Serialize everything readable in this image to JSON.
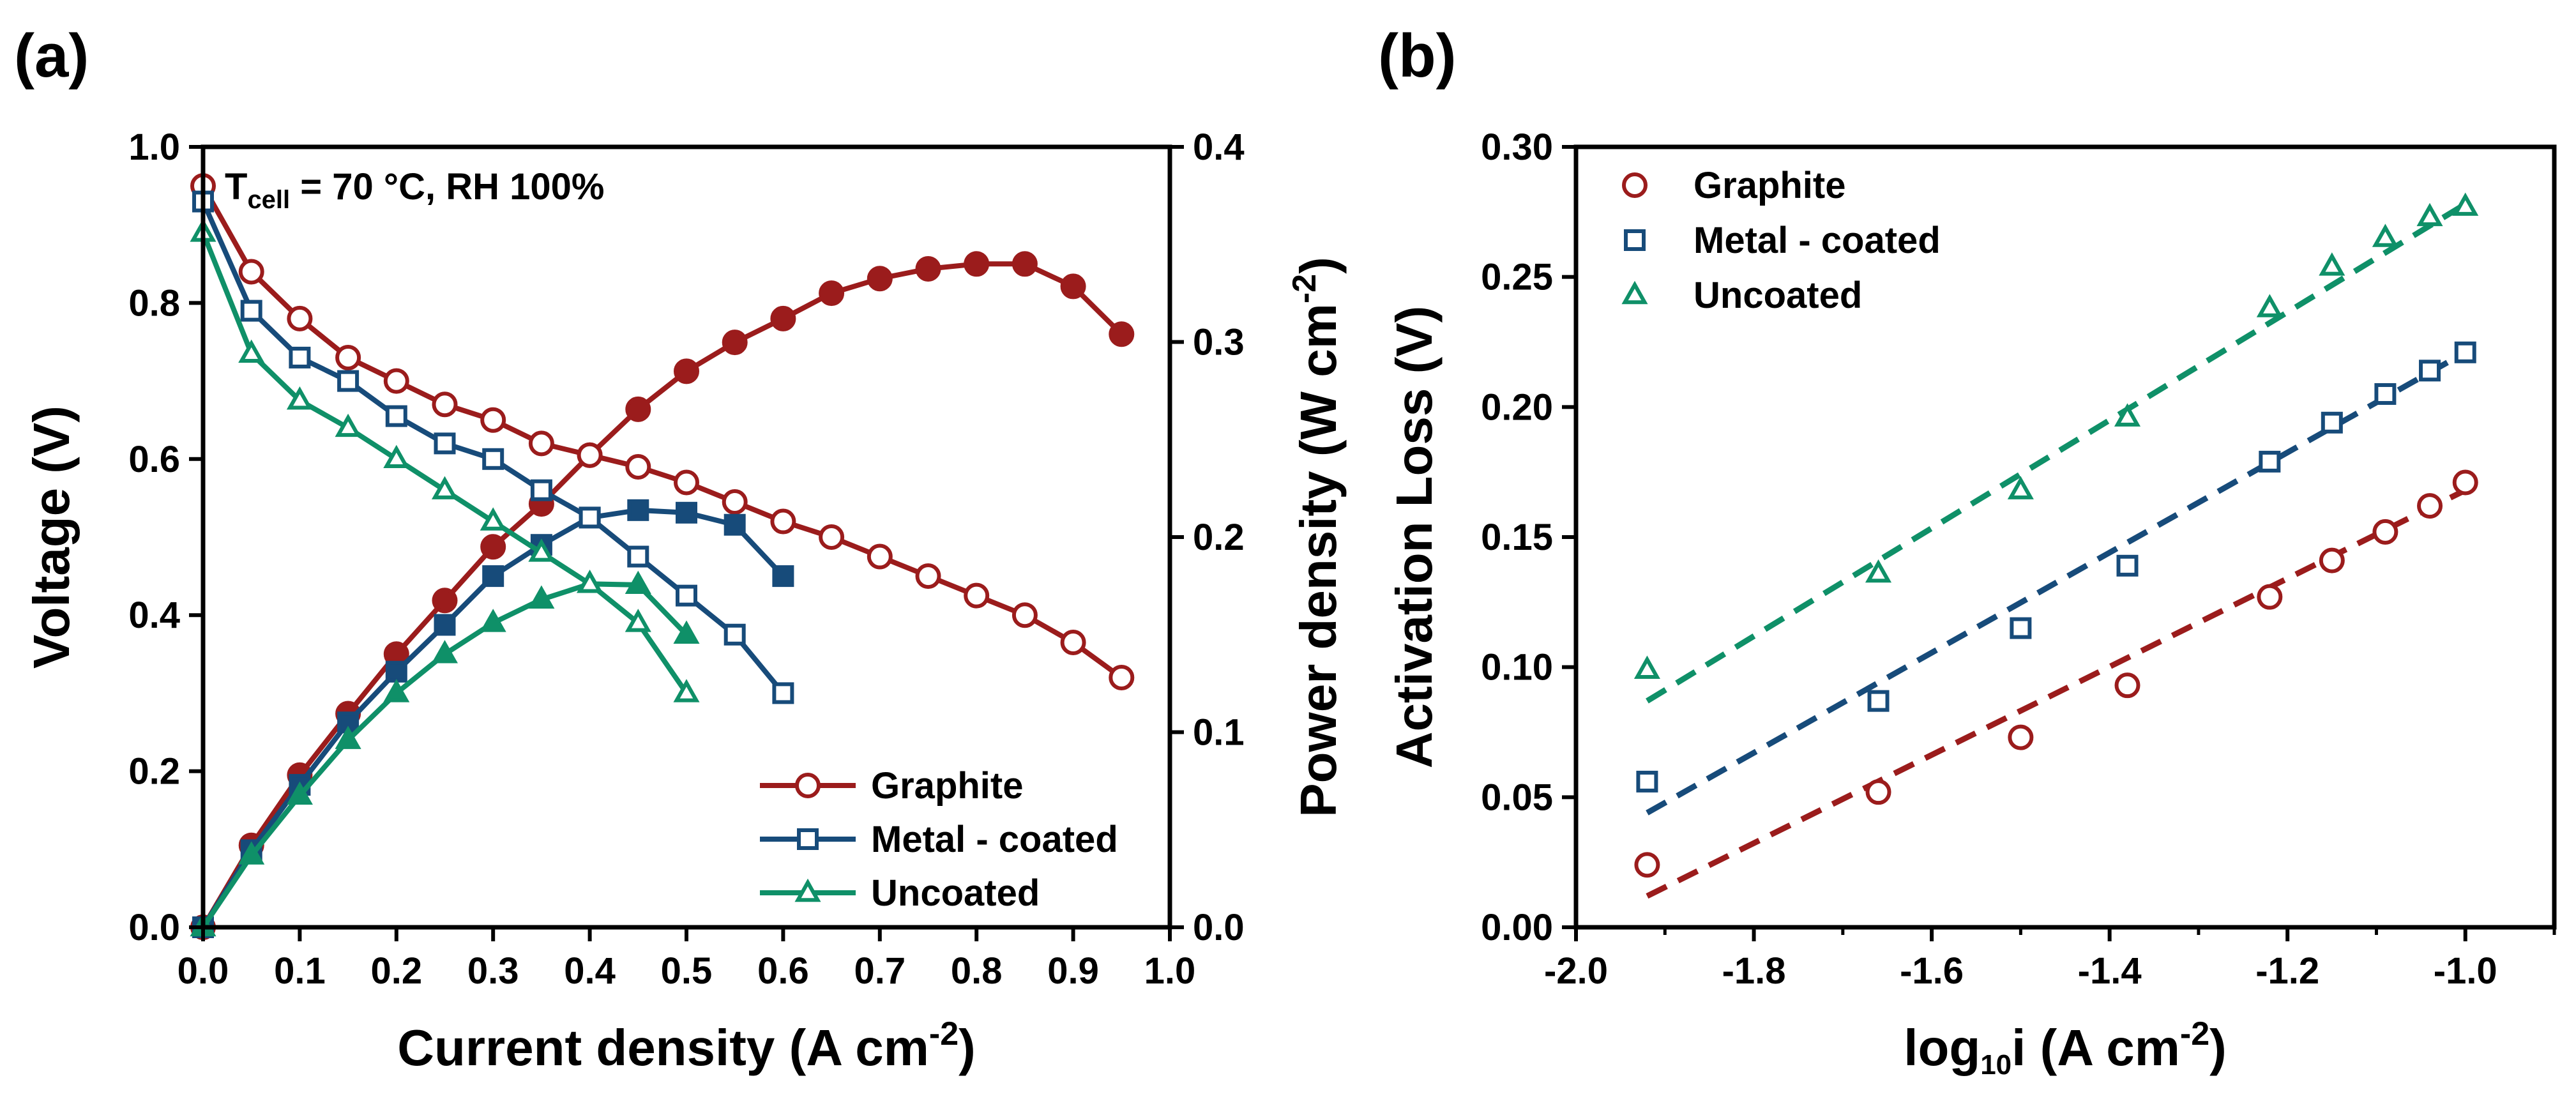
{
  "chart_data": [
    {
      "panel": "(a)",
      "type": "line",
      "annotation": {
        "main": "T",
        "sub": "cell",
        "rest": " = 70 °C, RH 100%"
      },
      "xlabel": {
        "main": "Current density (A cm",
        "sup": "-2",
        "end": ")"
      },
      "ylabel": "Voltage (V)",
      "y2label": {
        "main": "Power density (W cm",
        "sup": "-2",
        "end": ")"
      },
      "xlim": [
        0,
        1.0
      ],
      "ylim": [
        0,
        1.0
      ],
      "y2lim": [
        0,
        0.4
      ],
      "xticks": [
        "0.0",
        "0.1",
        "0.2",
        "0.3",
        "0.4",
        "0.5",
        "0.6",
        "0.7",
        "0.8",
        "0.9",
        "1.0"
      ],
      "yticks": [
        "0.0",
        "0.2",
        "0.4",
        "0.6",
        "0.8",
        "1.0"
      ],
      "y2ticks": [
        "0.0",
        "0.1",
        "0.2",
        "0.3",
        "0.4"
      ],
      "legend_position": "bottom-right",
      "series": [
        {
          "name": "Graphite",
          "color": "#9b1c1c",
          "marker": "circle",
          "x": [
            0,
            0.05,
            0.1,
            0.15,
            0.2,
            0.25,
            0.3,
            0.35,
            0.4,
            0.45,
            0.5,
            0.55,
            0.6,
            0.65,
            0.7,
            0.75,
            0.8,
            0.85,
            0.9,
            0.95
          ],
          "voltage": [
            0.95,
            0.84,
            0.78,
            0.73,
            0.7,
            0.67,
            0.65,
            0.62,
            0.605,
            0.59,
            0.57,
            0.545,
            0.52,
            0.5,
            0.475,
            0.45,
            0.425,
            0.4,
            0.365,
            0.32
          ],
          "power": [
            0,
            0.042,
            0.078,
            0.1095,
            0.14,
            0.1675,
            0.195,
            0.217,
            0.242,
            0.2655,
            0.285,
            0.2998,
            0.312,
            0.325,
            0.3325,
            0.3375,
            0.34,
            0.34,
            0.3285,
            0.304
          ]
        },
        {
          "name": "Metal - coated",
          "color": "#174b7a",
          "marker": "square",
          "x": [
            0,
            0.05,
            0.1,
            0.15,
            0.2,
            0.25,
            0.3,
            0.35,
            0.4,
            0.45,
            0.5,
            0.55,
            0.6
          ],
          "voltage": [
            0.93,
            0.79,
            0.73,
            0.7,
            0.655,
            0.62,
            0.6,
            0.56,
            0.525,
            0.475,
            0.425,
            0.375,
            0.3
          ],
          "power": [
            0,
            0.0395,
            0.073,
            0.105,
            0.131,
            0.155,
            0.18,
            0.196,
            0.21,
            0.2138,
            0.2125,
            0.2063,
            0.18
          ]
        },
        {
          "name": "Uncoated",
          "color": "#0f9068",
          "marker": "triangle",
          "x": [
            0,
            0.05,
            0.1,
            0.15,
            0.2,
            0.25,
            0.3,
            0.35,
            0.4,
            0.45,
            0.5
          ],
          "voltage": [
            0.89,
            0.735,
            0.675,
            0.64,
            0.6,
            0.56,
            0.52,
            0.48,
            0.44,
            0.39,
            0.3
          ],
          "power": [
            0,
            0.0368,
            0.0675,
            0.096,
            0.12,
            0.14,
            0.156,
            0.168,
            0.176,
            0.1755,
            0.15
          ]
        }
      ]
    },
    {
      "panel": "(b)",
      "type": "scatter",
      "xlabel": {
        "main": "log",
        "sub": "10",
        "mid": "i (A cm",
        "sup": "-2",
        "end": ")"
      },
      "ylabel": "Activation Loss (V)",
      "xlim": [
        -2.0,
        -0.9
      ],
      "ylim": [
        0,
        0.3
      ],
      "xticks": [
        "-2.0",
        "-1.8",
        "-1.6",
        "-1.4",
        "-1.2",
        "-1.0"
      ],
      "yticks": [
        "0.00",
        "0.05",
        "0.10",
        "0.15",
        "0.20",
        "0.25",
        "0.30"
      ],
      "legend_position": "top-left",
      "series": [
        {
          "name": "Graphite",
          "color": "#9b1c1c",
          "marker": "circle",
          "x": [
            -1.92,
            -1.66,
            -1.5,
            -1.38,
            -1.22,
            -1.15,
            -1.09,
            -1.04,
            -1.0
          ],
          "y": [
            0.024,
            0.052,
            0.073,
            0.093,
            0.127,
            0.141,
            0.152,
            0.162,
            0.171
          ],
          "fit": [
            [
              -1.92,
              0.012
            ],
            [
              -1.0,
              0.168
            ]
          ]
        },
        {
          "name": "Metal - coated",
          "color": "#174b7a",
          "marker": "square",
          "x": [
            -1.92,
            -1.66,
            -1.5,
            -1.38,
            -1.22,
            -1.15,
            -1.09,
            -1.04,
            -1.0
          ],
          "y": [
            0.056,
            0.087,
            0.115,
            0.139,
            0.179,
            0.194,
            0.205,
            0.214,
            0.221
          ],
          "fit": [
            [
              -1.92,
              0.044
            ],
            [
              -1.0,
              0.221
            ]
          ]
        },
        {
          "name": "Uncoated",
          "color": "#0f9068",
          "marker": "triangle",
          "x": [
            -1.92,
            -1.66,
            -1.5,
            -1.38,
            -1.22,
            -1.15,
            -1.09,
            -1.04,
            -1.0
          ],
          "y": [
            0.099,
            0.136,
            0.168,
            0.196,
            0.238,
            0.254,
            0.265,
            0.273,
            0.277
          ],
          "fit": [
            [
              -1.92,
              0.087
            ],
            [
              -1.0,
              0.278
            ]
          ]
        }
      ]
    }
  ]
}
